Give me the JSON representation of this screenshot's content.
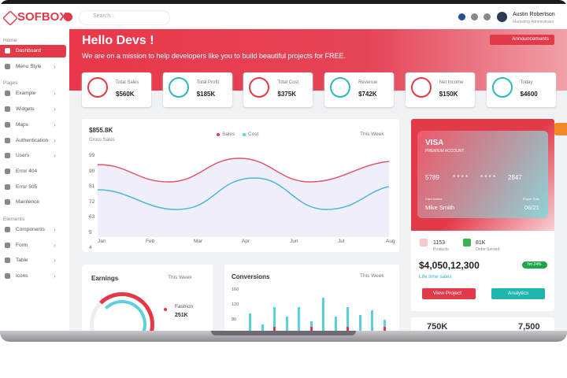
{
  "brand": "SOFBOX",
  "search": "Search...",
  "user": {
    "name": "Austin Robertson",
    "role": "Marketing Administrator"
  },
  "sidebar": [
    {
      "section": "Home",
      "items": [
        "Dashboard",
        "Menu Style"
      ]
    },
    {
      "section": "Pages",
      "items": [
        "Example",
        "Widgets",
        "Maps",
        "Authentication",
        "Users",
        "Error 404",
        "Error 505",
        "Maintence"
      ]
    },
    {
      "section": "Elements",
      "items": [
        "Components",
        "Form",
        "Table",
        "Icons"
      ]
    }
  ],
  "hero": {
    "title": "Hello Devs !",
    "subtitle": "We are on a mission to help developers like you to build beautiful projects for FREE.",
    "button": "Announcements"
  },
  "stats": [
    {
      "label": "Total Sales",
      "value": "$560K"
    },
    {
      "label": "Total Profit",
      "value": "$185K"
    },
    {
      "label": "Total Cost",
      "value": "$375K"
    },
    {
      "label": "Revenue",
      "value": "$742K"
    },
    {
      "label": "Net Income",
      "value": "$150K"
    },
    {
      "label": "Today",
      "value": "$4600"
    }
  ],
  "sales": {
    "amount": "$855.8K",
    "label": "Gross Sales",
    "legend": [
      "Sales",
      "Cost"
    ],
    "filter": "This Week",
    "yticks": [
      "99",
      "90",
      "81",
      "72",
      "63",
      "5",
      "4"
    ],
    "months": [
      "Jan",
      "Feb",
      "Mar",
      "Apr",
      "Jun",
      "Jul",
      "Aug"
    ]
  },
  "card": {
    "brand": "VISA",
    "tier": "PREMIUM ACCOUNT",
    "number": [
      "5789",
      "* * * *",
      "* * * *",
      "2847"
    ],
    "holder_label": "Card holder",
    "holder": "Mike Smith",
    "expire_label": "Expire Date",
    "expire": "06/21",
    "products": 1153,
    "products_label": "Products",
    "orders": "81K",
    "orders_label": "Order Served",
    "total": "$4,050,12,300",
    "total_label": "Life time sales",
    "badge": "Yet 24%",
    "buttons": [
      "View Project",
      "Analytics"
    ]
  },
  "earnings": {
    "title": "Earnings",
    "filter": "This Week",
    "legend": "Fashion",
    "value": "251K"
  },
  "conversions": {
    "title": "Conversions",
    "filter": "This Week",
    "yticks": [
      "160",
      "120",
      "80"
    ]
  },
  "bottom": [
    "750K",
    "7,500"
  ]
}
